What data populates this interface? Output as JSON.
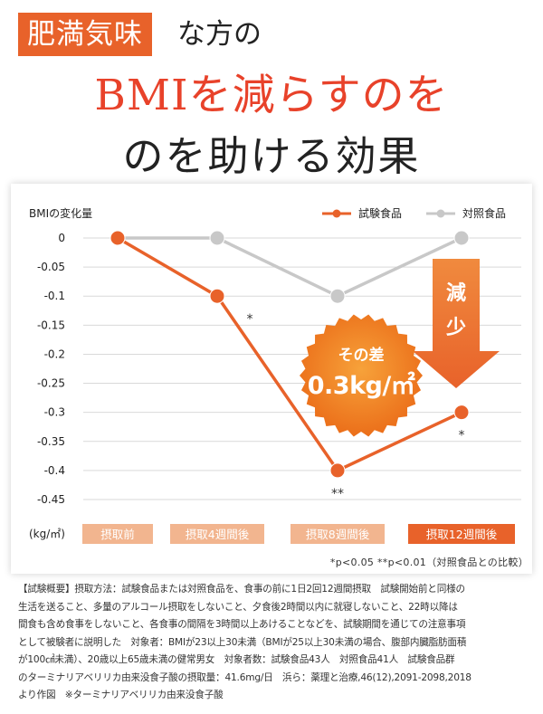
{
  "headline": {
    "tag": "肥満気味",
    "tag_suffix": "な方の",
    "line2": "BMIを減らすのを",
    "line3": "のを助ける効果"
  },
  "colors": {
    "accent": "#e8622a",
    "control": "#c8c8c8",
    "badge": "#f0741f",
    "label_light": "#f2b58f",
    "title_red": "#e8422a"
  },
  "chart_data": {
    "type": "line",
    "ylabel": "BMIの変化量",
    "unit_label": "(kg/㎡)",
    "ylim": [
      -0.45,
      0
    ],
    "yticks": [
      0,
      -0.05,
      -0.1,
      -0.15,
      -0.2,
      -0.25,
      -0.3,
      -0.35,
      -0.4,
      -0.45
    ],
    "ytick_labels": [
      "0",
      "-0.05",
      "-0.1",
      "-0.15",
      "-0.2",
      "-0.25",
      "-0.3",
      "-0.35",
      "-0.4",
      "-0.45"
    ],
    "categories": [
      "摂取前",
      "摂取4週間後",
      "摂取8週間後",
      "摂取12週間後"
    ],
    "grid": true,
    "legend_position": "top-right",
    "series": [
      {
        "name": "試験食品",
        "values": [
          0,
          -0.1,
          -0.4,
          -0.3
        ],
        "color": "#e8622a",
        "significance": [
          "",
          "*",
          "**",
          "*"
        ]
      },
      {
        "name": "対照食品",
        "values": [
          0,
          0,
          -0.1,
          0
        ],
        "color": "#c8c8c8"
      }
    ],
    "annotation": {
      "line1": "その差",
      "line2": "0.3kg/㎡"
    },
    "arrow_label": "減少",
    "significance_note": "*p<0.05 **p<0.01（対照食品との比較）"
  },
  "method_text": [
    "【試験概要】摂取方法：試験食品または対照食品を、食事の前に1日2回12週間摂取　試験開始前と同様の",
    "生活を送ること、多量のアルコール摂取をしないこと、夕食後2時間以内に就寝しないこと、22時以降は",
    "間食も含め食事をしないこと、各食事の間隔を3時間以上あけることなどを、試験期間を通じての注意事項",
    "として被験者に説明した　対象者：BMIが23以上30未満（BMIが25以上30未満の場合、腹部内臓脂肪面積",
    "が100㎠未満）、20歳以上65歳未満の健常男女　対象者数：試験食品43人　対照食品41人　試験食品群",
    "のターミナリアベリリカ由来没食子酸の摂取量：41.6mg/日　浜ら：薬理と治療,46(12),2091-2098,2018",
    "より作図　※ターミナリアベリリカ由来没食子酸"
  ]
}
